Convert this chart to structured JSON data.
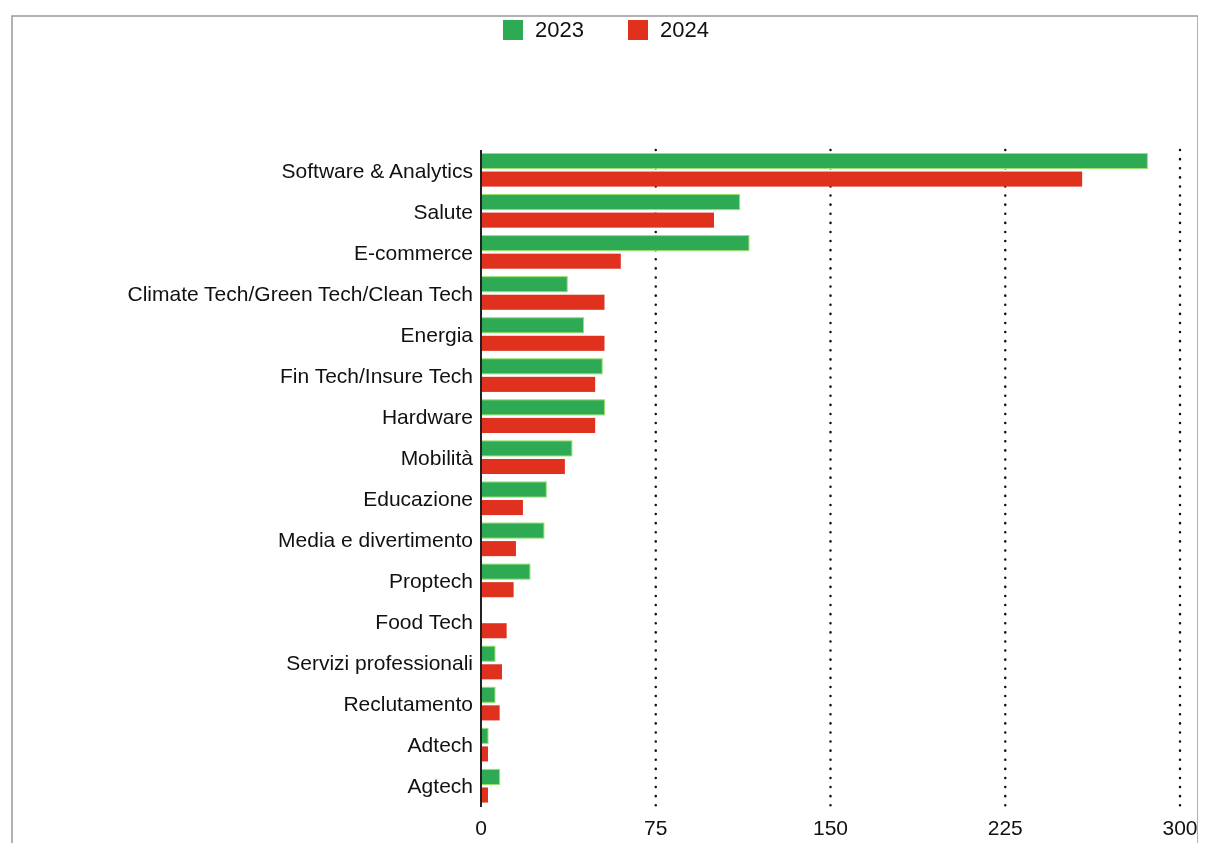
{
  "chart_data": {
    "type": "bar",
    "orientation": "horizontal",
    "categories": [
      "Software & Analytics",
      "Salute",
      "E-commerce",
      "Climate Tech/Green Tech/Clean Tech",
      "Energia",
      "Fin Tech/Insure Tech",
      "Hardware",
      "Mobilità",
      "Educazione",
      "Media e divertimento",
      "Proptech",
      "Food Tech",
      "Servizi professionali",
      "Reclutamento",
      "Adtech",
      "Agtech"
    ],
    "series": [
      {
        "name": "2023",
        "color": "#2eaa55",
        "values": [
          286,
          111,
          115,
          37,
          44,
          52,
          53,
          39,
          28,
          27,
          21,
          0,
          6,
          6,
          3,
          8
        ]
      },
      {
        "name": "2024",
        "color": "#e0301e",
        "values": [
          258,
          100,
          60,
          53,
          53,
          49,
          49,
          36,
          18,
          15,
          14,
          11,
          9,
          8,
          3,
          3
        ]
      }
    ],
    "xlim": [
      0,
      300
    ],
    "xticks": [
      0,
      75,
      150,
      225,
      300
    ],
    "grid": "x",
    "legend": "top"
  }
}
